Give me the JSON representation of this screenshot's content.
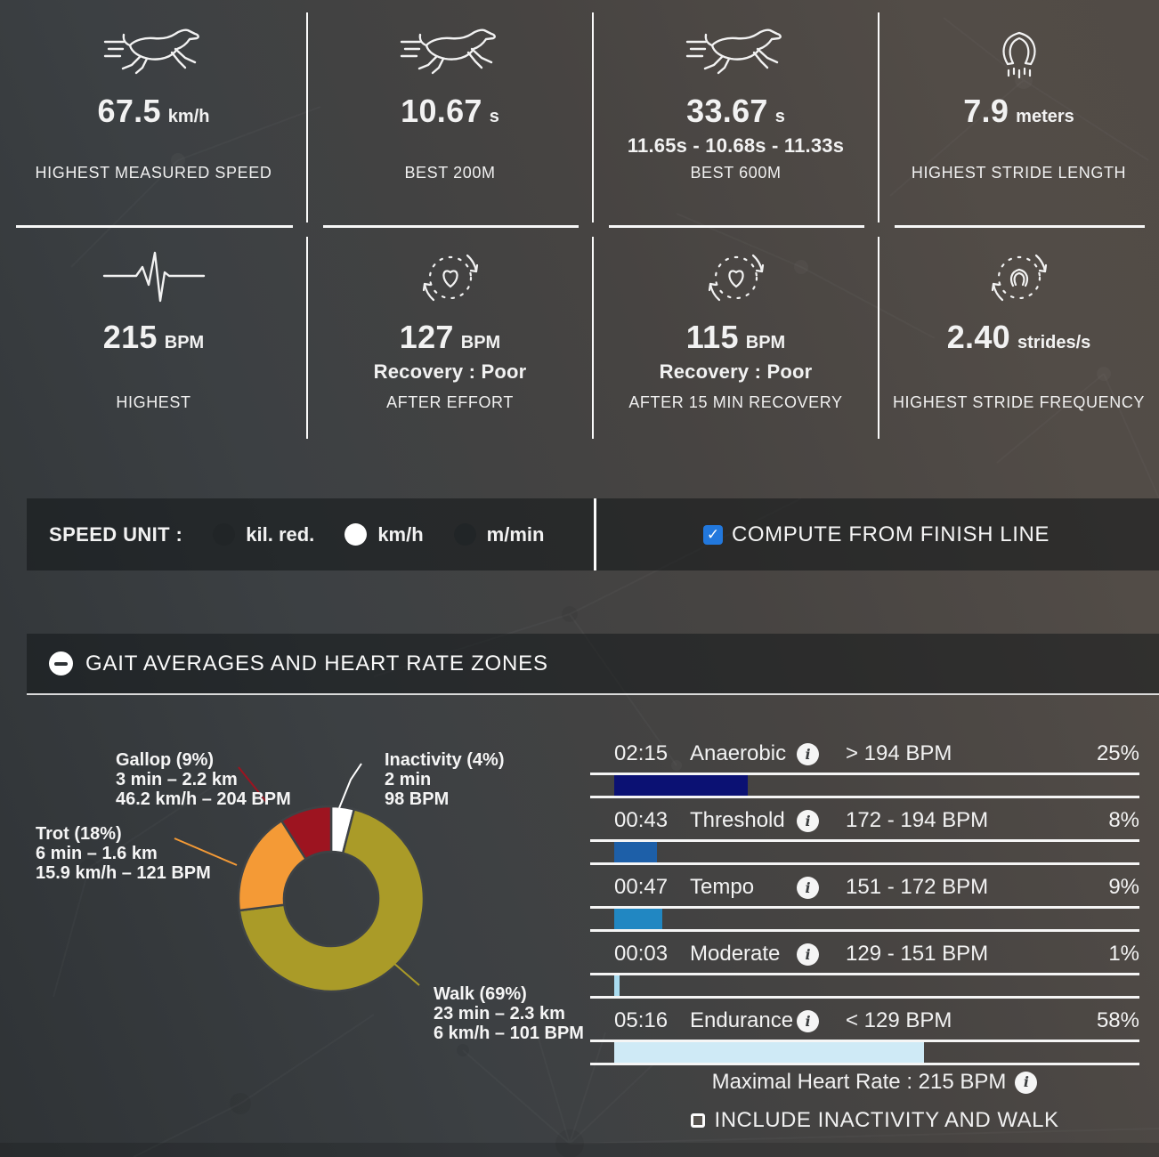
{
  "cards": [
    {
      "icon": "running-horse",
      "value": "67.5",
      "unit": "km/h",
      "label": "HIGHEST MEASURED SPEED"
    },
    {
      "icon": "running-horse",
      "value": "10.67",
      "unit": "s",
      "label": "BEST 200M"
    },
    {
      "icon": "running-horse",
      "value": "33.67",
      "unit": "s",
      "sub": "11.65s - 10.68s - 11.33s",
      "label": "BEST 600M"
    },
    {
      "icon": "horseshoe",
      "value": "7.9",
      "unit": "meters",
      "label": "HIGHEST STRIDE LENGTH"
    },
    {
      "icon": "heartbeat",
      "value": "215",
      "unit": "BPM",
      "label": "HIGHEST"
    },
    {
      "icon": "recovery-clock-heart",
      "value": "127",
      "unit": "BPM",
      "sub": "Recovery : Poor",
      "label": "AFTER EFFORT"
    },
    {
      "icon": "recovery-clock-heart",
      "value": "115",
      "unit": "BPM",
      "sub": "Recovery : Poor",
      "label": "AFTER 15 MIN RECOVERY"
    },
    {
      "icon": "recovery-clock-horseshoe",
      "value": "2.40",
      "unit": "strides/s",
      "label": "HIGHEST STRIDE FREQUENCY"
    }
  ],
  "speed_bar": {
    "label": "SPEED UNIT :",
    "options": [
      {
        "label": "kil. red.",
        "selected": false
      },
      {
        "label": "km/h",
        "selected": true
      },
      {
        "label": "m/min",
        "selected": false
      }
    ],
    "compute": {
      "label": "COMPUTE FROM FINISH LINE",
      "checked": true,
      "checkbox_color": "#2278dd"
    }
  },
  "section_header": {
    "title": "GAIT AVERAGES AND HEART RATE ZONES",
    "collapse_icon": "minus-circle"
  },
  "chart_data": [
    {
      "type": "pie",
      "title": "Gait averages",
      "donut_hole": 0.51,
      "start_angle_deg": 0,
      "direction": "clockwise",
      "segments": [
        {
          "name": "Inactivity",
          "pct": 4,
          "color": "#ffffff",
          "lines": [
            "Inactivity (4%)",
            "2 min",
            "98 BPM"
          ]
        },
        {
          "name": "Walk",
          "pct": 69,
          "color": "#aa9b28",
          "lines": [
            "Walk (69%)",
            "23 min – 2.3 km",
            "6 km/h – 101 BPM"
          ]
        },
        {
          "name": "Trot",
          "pct": 18,
          "color": "#f49a36",
          "lines": [
            "Trot (18%)",
            "6 min – 1.6 km",
            "15.9 km/h – 121 BPM"
          ]
        },
        {
          "name": "Gallop",
          "pct": 9,
          "color": "#9d1420",
          "lines": [
            "Gallop (9%)",
            "3 min – 2.2 km",
            "46.2 km/h – 204 BPM"
          ]
        }
      ]
    },
    {
      "type": "bar",
      "title": "Heart rate zones",
      "xlim": [
        0,
        100
      ],
      "rows": [
        {
          "time": "02:15",
          "zone": "Anaerobic",
          "range": "> 194 BPM",
          "pct": 25,
          "pct_label": "25%",
          "color": "#0b1173"
        },
        {
          "time": "00:43",
          "zone": "Threshold",
          "range": "172 - 194 BPM",
          "pct": 8,
          "pct_label": "8%",
          "color": "#1d5fa8"
        },
        {
          "time": "00:47",
          "zone": "Tempo",
          "range": "151 - 172 BPM",
          "pct": 9,
          "pct_label": "9%",
          "color": "#2187c2"
        },
        {
          "time": "00:03",
          "zone": "Moderate",
          "range": "129 - 151 BPM",
          "pct": 1,
          "pct_label": "1%",
          "color": "#a9dcf0"
        },
        {
          "time": "05:16",
          "zone": "Endurance",
          "range": "< 129 BPM",
          "pct": 58,
          "pct_label": "58%",
          "color": "#cfeaf6"
        }
      ]
    }
  ],
  "footer": {
    "max_hr_text": "Maximal Heart Rate : 215 BPM",
    "include_checkbox": {
      "label": "INCLUDE INACTIVITY AND WALK",
      "checked": false
    }
  }
}
